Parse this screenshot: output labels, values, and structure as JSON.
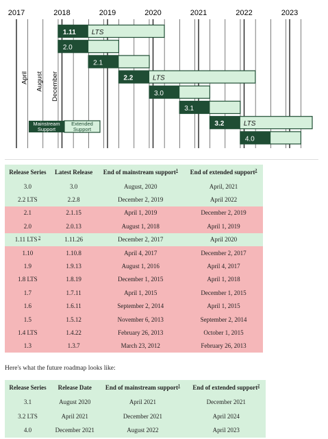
{
  "chart_data": {
    "type": "timeline",
    "x_ticks": [
      "2017",
      "2018",
      "2019",
      "2020",
      "2021",
      "2022",
      "2023"
    ],
    "x_range": [
      "2017-01-01",
      "2023-12-31"
    ],
    "month_markers": [
      {
        "label": "April",
        "date": "2017-04-01"
      },
      {
        "label": "August",
        "date": "2017-08-01"
      },
      {
        "label": "December",
        "date": "2017-12-01"
      }
    ],
    "releases": [
      {
        "name": "1.11",
        "lts": true,
        "start": "2017-12-01",
        "mainstream_end": "2017-12-02",
        "extended_end": "2020-04-01"
      },
      {
        "name": "2.0",
        "lts": false,
        "start": "2017-12-01",
        "mainstream_end": "2018-08-01",
        "extended_end": "2019-04-01"
      },
      {
        "name": "2.1",
        "lts": false,
        "start": "2018-08-01",
        "mainstream_end": "2019-04-01",
        "extended_end": "2019-12-02"
      },
      {
        "name": "2.2",
        "lts": true,
        "start": "2019-04-01",
        "mainstream_end": "2019-12-02",
        "extended_end": "2022-04-01"
      },
      {
        "name": "3.0",
        "lts": false,
        "start": "2019-12-02",
        "mainstream_end": "2020-08-01",
        "extended_end": "2021-04-01"
      },
      {
        "name": "3.1",
        "lts": false,
        "start": "2020-08-01",
        "mainstream_end": "2021-04-01",
        "extended_end": "2021-12-01"
      },
      {
        "name": "3.2",
        "lts": true,
        "start": "2021-04-01",
        "mainstream_end": "2021-12-01",
        "extended_end": "2024-04-01"
      },
      {
        "name": "4.0",
        "lts": false,
        "start": "2021-12-01",
        "mainstream_end": "2022-08-01",
        "extended_end": "2023-04-01"
      }
    ],
    "lts_label": "LTS",
    "legend": [
      {
        "label": "Mainstream Support",
        "color": "#1f4d34"
      },
      {
        "label": "Extended Support",
        "color": "#d6f0dc"
      }
    ]
  },
  "colors": {
    "mainstream": "#1f4d34",
    "extended": "#d6f0dc",
    "supported_row": "#d6f0dc",
    "eol_row": "#f5b7b9"
  },
  "table1": {
    "headers": [
      "Release Series",
      "Latest Release",
      "End of mainstream support",
      "End of extended support"
    ],
    "footnote_marks": {
      "mainstream": "1",
      "extended": "2"
    },
    "rows": [
      {
        "series": "3.0",
        "latest": "3.0",
        "mainstream": "August, 2020",
        "extended": "April, 2021",
        "status": "green"
      },
      {
        "series": "2.2 LTS",
        "latest": "2.2.8",
        "mainstream": "December 2, 2019",
        "extended": "April 2022",
        "status": "green"
      },
      {
        "series": "2.1",
        "latest": "2.1.15",
        "mainstream": "April 1, 2019",
        "extended": "December 2, 2019",
        "status": "red"
      },
      {
        "series": "2.0",
        "latest": "2.0.13",
        "mainstream": "August 1, 2018",
        "extended": "April 1, 2019",
        "status": "red"
      },
      {
        "series": "1.11 LTS",
        "series_mark": "3",
        "latest": "1.11.26",
        "mainstream": "December 2, 2017",
        "extended": "April 2020",
        "status": "green"
      },
      {
        "series": "1.10",
        "latest": "1.10.8",
        "mainstream": "April 4, 2017",
        "extended": "December 2, 2017",
        "status": "red"
      },
      {
        "series": "1.9",
        "latest": "1.9.13",
        "mainstream": "August 1, 2016",
        "extended": "April 4, 2017",
        "status": "red"
      },
      {
        "series": "1.8 LTS",
        "latest": "1.8.19",
        "mainstream": "December 1, 2015",
        "extended": "April 1, 2018",
        "status": "red"
      },
      {
        "series": "1.7",
        "latest": "1.7.11",
        "mainstream": "April 1, 2015",
        "extended": "December 1, 2015",
        "status": "red"
      },
      {
        "series": "1.6",
        "latest": "1.6.11",
        "mainstream": "September 2, 2014",
        "extended": "April 1, 2015",
        "status": "red"
      },
      {
        "series": "1.5",
        "latest": "1.5.12",
        "mainstream": "November 6, 2013",
        "extended": "September 2, 2014",
        "status": "red"
      },
      {
        "series": "1.4 LTS",
        "latest": "1.4.22",
        "mainstream": "February 26, 2013",
        "extended": "October 1, 2015",
        "status": "red"
      },
      {
        "series": "1.3",
        "latest": "1.3.7",
        "mainstream": "March 23, 2012",
        "extended": "February 26, 2013",
        "status": "red"
      }
    ]
  },
  "roadmap_intro": "Here's what the future roadmap looks like:",
  "table2": {
    "headers": [
      "Release Series",
      "Release Date",
      "End of mainstream support",
      "End of extended support"
    ],
    "footnote_marks": {
      "mainstream": "1",
      "extended": "2"
    },
    "rows": [
      {
        "series": "3.1",
        "date": "August 2020",
        "mainstream": "April 2021",
        "extended": "December 2021"
      },
      {
        "series": "3.2 LTS",
        "date": "April 2021",
        "mainstream": "December 2021",
        "extended": "April 2024"
      },
      {
        "series": "4.0",
        "date": "December 2021",
        "mainstream": "August 2022",
        "extended": "April 2023"
      }
    ]
  }
}
